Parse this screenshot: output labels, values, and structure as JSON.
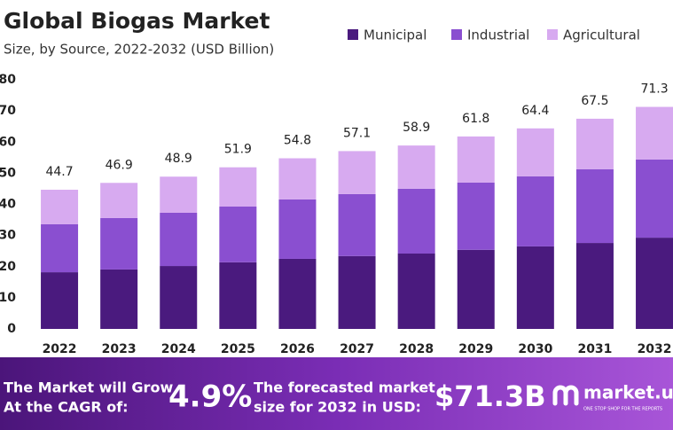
{
  "chart_data": {
    "type": "stacked_bar",
    "title": "Global Biogas Market",
    "subtitle": "Size, by Source, 2022-2032 (USD Billion)",
    "categories": [
      "2022",
      "2023",
      "2024",
      "2025",
      "2026",
      "2027",
      "2028",
      "2029",
      "2030",
      "2031",
      "2032"
    ],
    "series": [
      {
        "name": "Municipal",
        "color": "#4a1a7e",
        "values": [
          18.2,
          19.1,
          20.2,
          21.4,
          22.5,
          23.4,
          24.2,
          25.4,
          26.5,
          27.6,
          29.3
        ]
      },
      {
        "name": "Industrial",
        "color": "#8a4fd0",
        "values": [
          15.4,
          16.5,
          17.1,
          17.9,
          19.1,
          19.9,
          20.8,
          21.6,
          22.5,
          23.7,
          25.1
        ]
      },
      {
        "name": "Agricultural",
        "color": "#d7aaf0",
        "values": [
          11.1,
          11.3,
          11.6,
          12.6,
          13.2,
          13.8,
          13.9,
          14.8,
          15.4,
          16.2,
          16.9
        ]
      }
    ],
    "totals": [
      44.7,
      46.9,
      48.9,
      51.9,
      54.8,
      57.1,
      58.9,
      61.8,
      64.4,
      67.5,
      71.3
    ],
    "ylim": [
      0,
      80
    ],
    "yticks": [
      0,
      10,
      20,
      30,
      40,
      50,
      60,
      70,
      80
    ],
    "grid": false
  },
  "banner": {
    "cagr_text": [
      "The Market will Grow",
      "At the CAGR of:"
    ],
    "cagr": "4.9%",
    "forecast_text": [
      "The forecasted market",
      "size for 2032 in USD:"
    ],
    "forecast": "$71.3B",
    "brand": "market.us",
    "tagline": "ONE STOP SHOP FOR THE REPORTS"
  }
}
